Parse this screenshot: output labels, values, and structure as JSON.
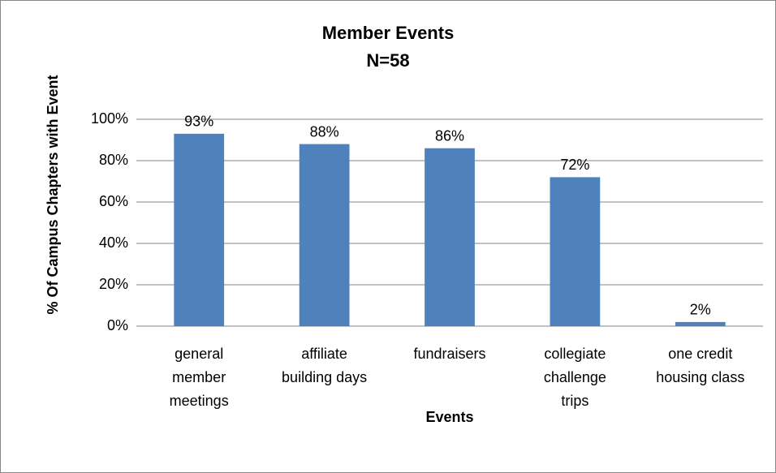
{
  "chart_data": {
    "type": "bar",
    "title": "Member Events",
    "subtitle": "N=58",
    "x_label": "Events",
    "y_label": "% Of Campus Chapters with Event",
    "categories": [
      "general\nmember\nmeetings",
      "affiliate\nbuilding days",
      "fundraisers",
      "collegiate\nchallenge\ntrips",
      "one credit\nhousing class"
    ],
    "values": [
      93,
      88,
      86,
      72,
      2
    ],
    "value_labels": [
      "93%",
      "88%",
      "86%",
      "72%",
      "2%"
    ],
    "color": "#4f81bd",
    "ylim": [
      0,
      100
    ],
    "yticks": [
      {
        "value": 0,
        "label": "0%"
      },
      {
        "value": 20,
        "label": "20%"
      },
      {
        "value": 40,
        "label": "40%"
      },
      {
        "value": 60,
        "label": "60%"
      },
      {
        "value": 80,
        "label": "80%"
      },
      {
        "value": 100,
        "label": "100%"
      }
    ],
    "grid": true
  }
}
